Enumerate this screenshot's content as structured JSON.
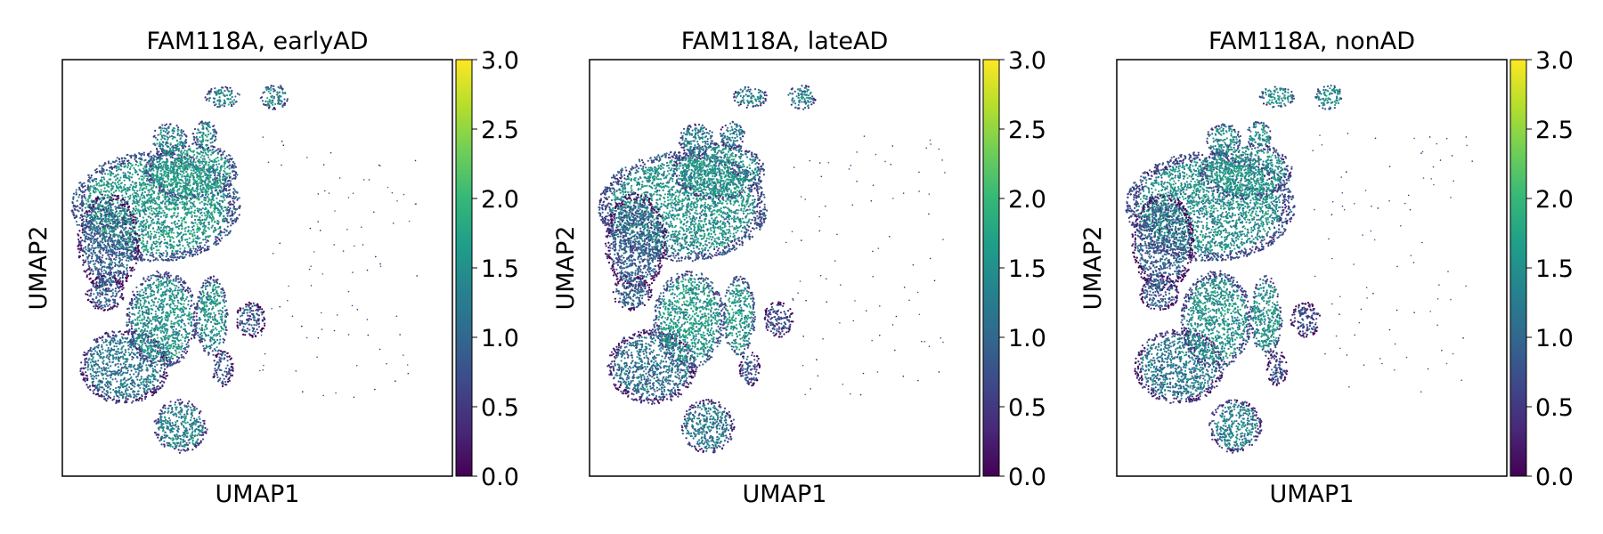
{
  "colormap": [
    "#440154",
    "#482878",
    "#3e4989",
    "#31688e",
    "#26828e",
    "#1f9e89",
    "#35b779",
    "#6ece58",
    "#b5de2b",
    "#fde725"
  ],
  "chart_data": [
    {
      "type": "scatter",
      "title": "FAM118A, earlyAD",
      "xlabel": "UMAP1",
      "ylabel": "UMAP2",
      "colorbar": {
        "range": [
          0.0,
          3.0
        ],
        "ticks": [
          "0.0",
          "0.5",
          "1.0",
          "1.5",
          "2.0",
          "2.5",
          "3.0"
        ]
      },
      "clusters": [
        {
          "region": "large-upper-cluster",
          "mean_expression": 1.6
        },
        {
          "region": "left-edge-cluster",
          "mean_expression": 0.9
        },
        {
          "region": "lower-left-cluster",
          "mean_expression": 1.2
        },
        {
          "region": "center-lower-cluster",
          "mean_expression": 1.5
        },
        {
          "region": "small-right-cluster",
          "mean_expression": 0.8
        },
        {
          "region": "bottom-cluster",
          "mean_expression": 1.3
        },
        {
          "region": "top-small-clusters",
          "mean_expression": 1.4
        }
      ]
    },
    {
      "type": "scatter",
      "title": "FAM118A, lateAD",
      "xlabel": "UMAP1",
      "ylabel": "UMAP2",
      "colorbar": {
        "range": [
          0.0,
          3.0
        ],
        "ticks": [
          "0.0",
          "0.5",
          "1.0",
          "1.5",
          "2.0",
          "2.5",
          "3.0"
        ]
      },
      "clusters": [
        {
          "region": "large-upper-cluster",
          "mean_expression": 1.5
        },
        {
          "region": "left-edge-cluster",
          "mean_expression": 0.9
        },
        {
          "region": "lower-left-cluster",
          "mean_expression": 1.1
        },
        {
          "region": "center-lower-cluster",
          "mean_expression": 1.6
        },
        {
          "region": "small-right-cluster",
          "mean_expression": 0.7
        },
        {
          "region": "bottom-cluster",
          "mean_expression": 1.2
        },
        {
          "region": "top-small-clusters",
          "mean_expression": 1.3
        }
      ]
    },
    {
      "type": "scatter",
      "title": "FAM118A, nonAD",
      "xlabel": "UMAP1",
      "ylabel": "UMAP2",
      "colorbar": {
        "range": [
          0.0,
          3.0
        ],
        "ticks": [
          "0.0",
          "0.5",
          "1.0",
          "1.5",
          "2.0",
          "2.5",
          "3.0"
        ]
      },
      "clusters": [
        {
          "region": "large-upper-cluster",
          "mean_expression": 1.5
        },
        {
          "region": "left-edge-cluster",
          "mean_expression": 0.9
        },
        {
          "region": "lower-left-cluster",
          "mean_expression": 1.2
        },
        {
          "region": "center-lower-cluster",
          "mean_expression": 1.5
        },
        {
          "region": "small-right-cluster",
          "mean_expression": 0.7
        },
        {
          "region": "bottom-cluster",
          "mean_expression": 1.3
        },
        {
          "region": "top-small-clusters",
          "mean_expression": 1.5
        }
      ]
    }
  ]
}
